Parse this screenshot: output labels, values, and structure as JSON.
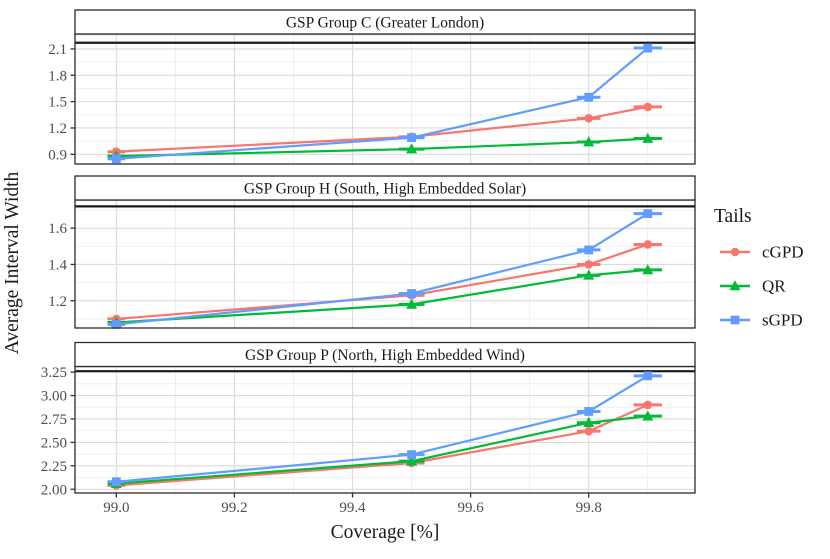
{
  "figure": {
    "x_axis_label": "Coverage [%]",
    "y_axis_label": "Average Interval Width",
    "x_range": [
      98.93,
      99.98
    ],
    "x_tick_values": [
      99.0,
      99.2,
      99.4,
      99.6,
      99.8
    ],
    "x_tick_labels": [
      "99.0",
      "99.2",
      "99.4",
      "99.6",
      "99.8"
    ],
    "text_color": "#1a1a1a",
    "tick_label_color": "#4d4d4d",
    "grid_major_color": "#dbdbdb",
    "grid_minor_color": "#ededed",
    "panel_border_color": "#2b2b2b",
    "reference_line_color": "#1a1a1a"
  },
  "legend": {
    "title": "Tails",
    "entries": [
      {
        "label": "cGPD",
        "color": "#F8766D",
        "marker": "circle"
      },
      {
        "label": "QR",
        "color": "#00BA38",
        "marker": "triangle"
      },
      {
        "label": "sGPD",
        "color": "#619CFF",
        "marker": "square"
      }
    ]
  },
  "chart_data": [
    {
      "type": "line",
      "title": "GSP Group C (Greater London)",
      "xlabel": "Coverage [%]",
      "ylabel": "Average Interval Width",
      "x": [
        99.0,
        99.5,
        99.8,
        99.9
      ],
      "x_error": [
        0.015,
        0.022,
        0.02,
        0.024
      ],
      "series": [
        {
          "name": "cGPD",
          "color": "#F8766D",
          "marker": "circle",
          "values": [
            0.93,
            1.1,
            1.31,
            1.44
          ]
        },
        {
          "name": "QR",
          "color": "#00BA38",
          "marker": "triangle",
          "values": [
            0.88,
            0.96,
            1.04,
            1.08
          ]
        },
        {
          "name": "sGPD",
          "color": "#619CFF",
          "marker": "square",
          "values": [
            0.85,
            1.09,
            1.55,
            2.11
          ]
        }
      ],
      "reference_line": 2.17,
      "ylim": [
        0.79,
        2.27
      ],
      "y_ticks": [
        0.9,
        1.2,
        1.5,
        1.8,
        2.1
      ],
      "y_tick_labels": [
        "0.9",
        "1.2",
        "1.5",
        "1.8",
        "2.1"
      ],
      "grid": true,
      "legend_position": "right"
    },
    {
      "type": "line",
      "title": "GSP Group H (South, High Embedded Solar)",
      "xlabel": "Coverage [%]",
      "ylabel": "Average Interval Width",
      "x": [
        99.0,
        99.5,
        99.8,
        99.9
      ],
      "x_error": [
        0.015,
        0.022,
        0.02,
        0.024
      ],
      "series": [
        {
          "name": "cGPD",
          "color": "#F8766D",
          "marker": "circle",
          "values": [
            1.1,
            1.23,
            1.4,
            1.51
          ]
        },
        {
          "name": "QR",
          "color": "#00BA38",
          "marker": "triangle",
          "values": [
            1.08,
            1.18,
            1.34,
            1.37
          ]
        },
        {
          "name": "sGPD",
          "color": "#619CFF",
          "marker": "square",
          "values": [
            1.07,
            1.24,
            1.48,
            1.68
          ]
        }
      ],
      "reference_line": 1.72,
      "ylim": [
        1.05,
        1.755
      ],
      "y_ticks": [
        1.2,
        1.4,
        1.6
      ],
      "y_tick_labels": [
        "1.2",
        "1.4",
        "1.6"
      ],
      "grid": true,
      "legend_position": "right"
    },
    {
      "type": "line",
      "title": "GSP Group P (North, High Embedded Wind)",
      "xlabel": "Coverage [%]",
      "ylabel": "Average Interval Width",
      "x": [
        99.0,
        99.5,
        99.8,
        99.9
      ],
      "x_error": [
        0.015,
        0.022,
        0.02,
        0.024
      ],
      "series": [
        {
          "name": "cGPD",
          "color": "#F8766D",
          "marker": "circle",
          "values": [
            2.04,
            2.28,
            2.62,
            2.9
          ]
        },
        {
          "name": "QR",
          "color": "#00BA38",
          "marker": "triangle",
          "values": [
            2.06,
            2.3,
            2.71,
            2.78
          ]
        },
        {
          "name": "sGPD",
          "color": "#619CFF",
          "marker": "square",
          "values": [
            2.08,
            2.37,
            2.83,
            3.21
          ]
        }
      ],
      "reference_line": 3.26,
      "ylim": [
        1.96,
        3.31
      ],
      "y_ticks": [
        2.0,
        2.25,
        2.5,
        2.75,
        3.0,
        3.25
      ],
      "y_tick_labels": [
        "2.00",
        "2.25",
        "2.50",
        "2.75",
        "3.00",
        "3.25"
      ],
      "grid": true,
      "legend_position": "right"
    }
  ]
}
